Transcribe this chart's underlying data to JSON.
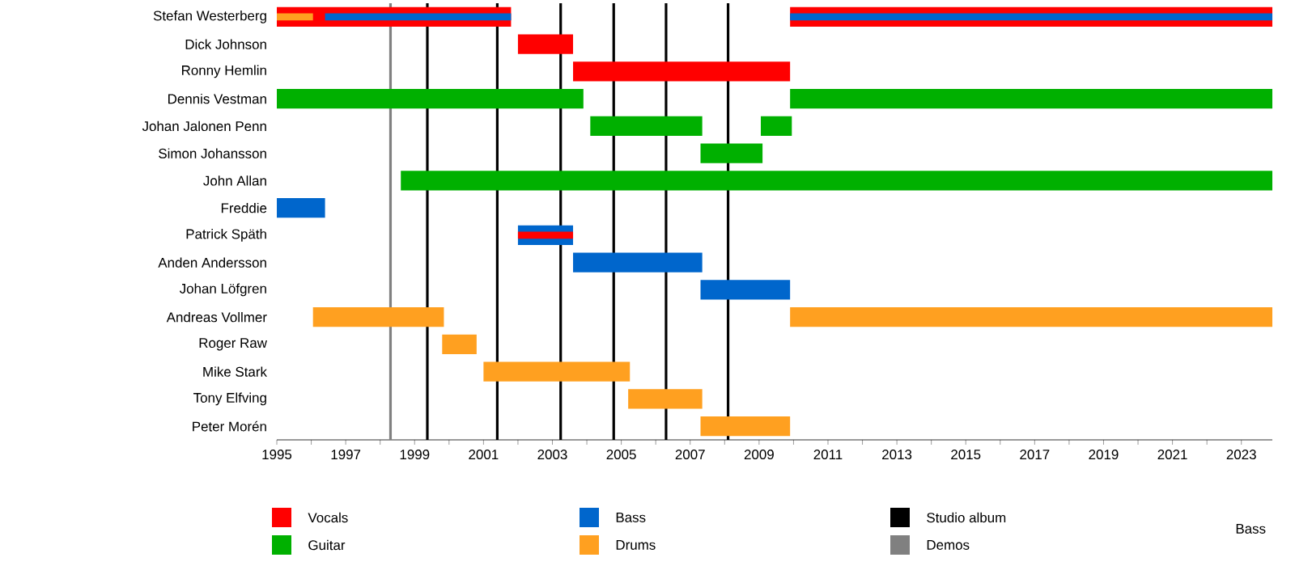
{
  "chart_data": {
    "type": "bar",
    "orientation": "horizontal",
    "categories": [
      "Stefan Westerberg",
      "Dick Johnson",
      "Ronny Hemlin",
      "Dennis Vestman",
      "Johan Jalonen Penn",
      "Simon Johansson",
      "John Allan",
      "Freddie",
      "Patrick Späth",
      "Anden Andersson",
      "Johan Löfgren",
      "Andreas Vollmer",
      "Roger Raw",
      "Mike Stark",
      "Tony Elfving",
      "Peter Morén"
    ],
    "series": [
      {
        "name": "Vocals",
        "color": "#ff0000",
        "base": [
          1995,
          2002.0,
          2003.6,
          null,
          null,
          null,
          null,
          null,
          null,
          null,
          null,
          null,
          null,
          null,
          null,
          null
        ],
        "values": [
          6.8,
          1.6,
          6.3,
          null,
          null,
          null,
          null,
          null,
          null,
          null,
          null,
          null,
          null,
          null,
          null,
          null
        ]
      },
      {
        "name": "Guitar",
        "color": "#00b000",
        "base": [
          null,
          null,
          null,
          1995,
          2004.1,
          2007.3,
          1998.6,
          null,
          null,
          null,
          null,
          null,
          null,
          null,
          null,
          null
        ],
        "values": [
          null,
          null,
          null,
          8.9,
          3.25,
          1.8,
          25.3,
          null,
          null,
          null,
          null,
          null,
          null,
          null,
          null,
          null
        ]
      },
      {
        "name": "Bass",
        "color": "#0066cc",
        "base": [
          1996.4,
          null,
          null,
          null,
          null,
          null,
          null,
          1995,
          2002.0,
          2003.6,
          2007.3,
          null,
          null,
          null,
          null,
          null
        ],
        "values": [
          5.4,
          null,
          null,
          null,
          null,
          null,
          null,
          1.4,
          1.6,
          3.75,
          2.6,
          null,
          null,
          null,
          null,
          null
        ]
      },
      {
        "name": "Drums",
        "color": "#ffa020",
        "base": [
          1995,
          null,
          null,
          null,
          null,
          null,
          null,
          null,
          null,
          null,
          null,
          1996.05,
          1999.8,
          2001.0,
          2005.2,
          2007.3
        ],
        "values": [
          1.05,
          null,
          null,
          null,
          null,
          null,
          null,
          null,
          null,
          null,
          null,
          3.8,
          1.0,
          4.25,
          2.15,
          2.6
        ]
      },
      {
        "color": "#ff0000",
        "base": [
          2009.9,
          null,
          null,
          null,
          null,
          null,
          null,
          null,
          2002.0,
          null,
          null,
          null,
          null,
          null,
          null,
          null
        ],
        "values": [
          14,
          null,
          null,
          null,
          null,
          null,
          null,
          null,
          1.6,
          null,
          null,
          null,
          null,
          null,
          null,
          null
        ]
      },
      {
        "color": "#00b000",
        "base": [
          null,
          null,
          null,
          2009.9,
          2009.05,
          null,
          null,
          null,
          null,
          null,
          null,
          null,
          null,
          null,
          null,
          null
        ],
        "values": [
          null,
          null,
          null,
          14,
          0.9,
          null,
          null,
          null,
          null,
          null,
          null,
          null,
          null,
          null,
          null,
          null
        ]
      },
      {
        "color": "#0066cc",
        "base": [
          2009.9,
          null,
          null,
          null,
          null,
          null,
          null,
          null,
          null,
          null,
          null,
          null,
          null,
          null,
          null,
          null
        ],
        "values": [
          14,
          null,
          null,
          null,
          null,
          null,
          null,
          null,
          null,
          null,
          null,
          null,
          null,
          null,
          null,
          null
        ]
      },
      {
        "color": "#ffa020",
        "base": [
          null,
          null,
          null,
          null,
          null,
          null,
          null,
          null,
          null,
          null,
          null,
          2009.9,
          null,
          null,
          null,
          null
        ],
        "values": [
          null,
          null,
          null,
          null,
          null,
          null,
          null,
          null,
          null,
          null,
          null,
          14,
          null,
          null,
          null,
          null
        ]
      }
    ],
    "xlim": [
      1995,
      2023.9
    ],
    "xticks": [
      1995,
      {
        "value": 1996,
        "label": null
      },
      1997,
      {
        "value": 1998,
        "label": null
      },
      1999,
      {
        "value": 2000,
        "label": null
      },
      2001,
      {
        "value": 2002,
        "label": null
      },
      2003,
      {
        "value": 2004,
        "label": null
      },
      2005,
      {
        "value": 2006,
        "label": null
      },
      2007,
      {
        "value": 2008,
        "label": null
      },
      2009,
      {
        "value": 2010,
        "label": null
      },
      2011,
      {
        "value": 2012,
        "label": null
      },
      2013,
      {
        "value": 2014,
        "label": null
      },
      2015,
      {
        "value": 2016,
        "label": null
      },
      2017,
      {
        "value": 2018,
        "label": null
      },
      2019,
      {
        "value": 2020,
        "label": null
      },
      2021,
      {
        "value": 2022,
        "label": null
      },
      2023
    ],
    "ref_lines": [
      {
        "axis": "x",
        "value": 1999.37,
        "label": "Studio album",
        "color": "#000000"
      },
      {
        "axis": "x",
        "value": 1998.3,
        "label": "Demos",
        "color": "#808080"
      },
      {
        "axis": "x",
        "value": 2001.4,
        "color": "#000000"
      },
      {
        "axis": "x",
        "value": 2003.24,
        "color": "#000000"
      },
      {
        "axis": "x",
        "value": 2004.78,
        "color": "#000000"
      },
      {
        "axis": "x",
        "value": 2006.3,
        "color": "#000000"
      },
      {
        "axis": "x",
        "value": 2008.1,
        "color": "#000000"
      }
    ],
    "legend": "bottom",
    "annotations": [
      "Bass"
    ]
  }
}
